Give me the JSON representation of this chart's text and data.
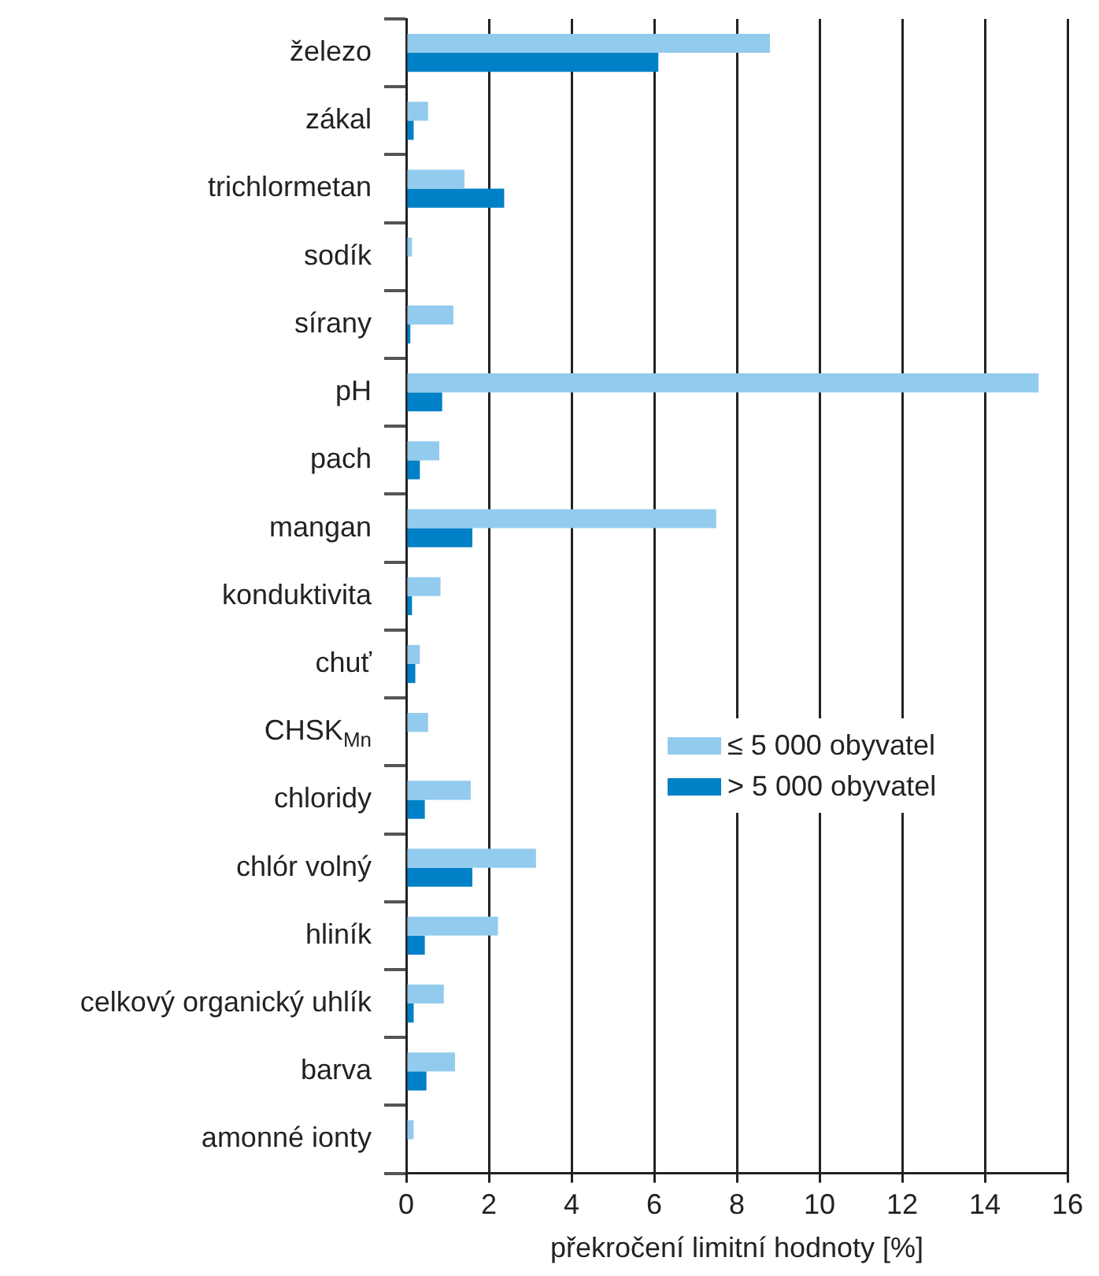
{
  "chart_data": {
    "type": "bar",
    "orientation": "horizontal",
    "xlabel": "překročení limitní hodnoty [%]",
    "categories": [
      "železo",
      "zákal",
      "trichlormetan",
      "sodík",
      "sírany",
      "pH",
      "pach",
      "mangan",
      "konduktivita",
      "chuť",
      "CHSK$_{Mn}$",
      "chloridy",
      "chlór volný",
      "hliník",
      "celkový organický uhlík",
      "barva",
      "amonné ionty"
    ],
    "series": [
      {
        "name": "≤ 5 000 obyvatel",
        "color": "#93cbee",
        "values": [
          8.8,
          0.53,
          1.41,
          0.14,
          1.14,
          15.3,
          0.8,
          7.5,
          0.83,
          0.33,
          0.53,
          1.56,
          3.14,
          2.22,
          0.91,
          1.18,
          0.18
        ]
      },
      {
        "name": "> 5 000 obyvatel",
        "color": "#0080c6",
        "values": [
          6.1,
          0.18,
          2.37,
          0,
          0.1,
          0.87,
          0.33,
          1.6,
          0.14,
          0.22,
          0,
          0.45,
          1.6,
          0.45,
          0.18,
          0.49,
          0
        ]
      }
    ],
    "xlim": [
      0,
      16
    ],
    "xticks": [
      0,
      2,
      4,
      6,
      8,
      10,
      12,
      14,
      16
    ],
    "grid": "x",
    "legend": "right"
  }
}
